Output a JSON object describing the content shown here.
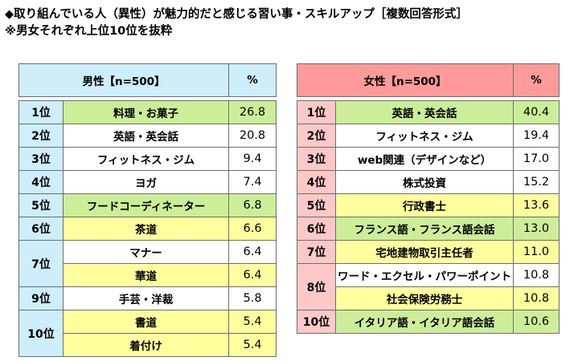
{
  "heading": {
    "line1": "◆取り組んでいる人（異性）が魅力的だと感じる習い事・スキルアップ［複数回答形式］",
    "line2": "※男女それぞれ上位10位を抜粋"
  },
  "colors": {
    "male_header": "#cdeefa",
    "female_header": "#ff9a9a",
    "rank_cell_male": "#cdeefa",
    "rank_cell_female": "#fcc8c8",
    "green_highlight": "#ccee99",
    "yellow_highlight": "#ffff9e",
    "plain": "#ffffff",
    "border": "#6e6e6e"
  },
  "chart_data": [
    {
      "type": "table",
      "header": {
        "label": "男性【n=500】",
        "unit": "%"
      },
      "groups": [
        {
          "rank": "1位",
          "items": [
            {
              "name": "料理・お菓子",
              "value": "26.8",
              "highlight": "green"
            }
          ]
        },
        {
          "rank": "2位",
          "items": [
            {
              "name": "英語・英会話",
              "value": "20.8",
              "highlight": "none"
            }
          ]
        },
        {
          "rank": "3位",
          "items": [
            {
              "name": "フィットネス・ジム",
              "value": "9.4",
              "highlight": "none"
            }
          ]
        },
        {
          "rank": "4位",
          "items": [
            {
              "name": "ヨガ",
              "value": "7.4",
              "highlight": "none"
            }
          ]
        },
        {
          "rank": "5位",
          "items": [
            {
              "name": "フードコーディネーター",
              "value": "6.8",
              "highlight": "green"
            }
          ]
        },
        {
          "rank": "6位",
          "items": [
            {
              "name": "茶道",
              "value": "6.6",
              "highlight": "yellow"
            }
          ]
        },
        {
          "rank": "7位",
          "items": [
            {
              "name": "マナー",
              "value": "6.4",
              "highlight": "none"
            },
            {
              "name": "華道",
              "value": "6.4",
              "highlight": "yellow"
            }
          ]
        },
        {
          "rank": "9位",
          "items": [
            {
              "name": "手芸・洋裁",
              "value": "5.8",
              "highlight": "none"
            }
          ]
        },
        {
          "rank": "10位",
          "items": [
            {
              "name": "書道",
              "value": "5.4",
              "highlight": "yellow"
            },
            {
              "name": "着付け",
              "value": "5.4",
              "highlight": "yellow"
            }
          ]
        }
      ]
    },
    {
      "type": "table",
      "header": {
        "label": "女性【n=500】",
        "unit": "%"
      },
      "groups": [
        {
          "rank": "1位",
          "items": [
            {
              "name": "英語・英会話",
              "value": "40.4",
              "highlight": "green"
            }
          ]
        },
        {
          "rank": "2位",
          "items": [
            {
              "name": "フィットネス・ジム",
              "value": "19.4",
              "highlight": "none"
            }
          ]
        },
        {
          "rank": "3位",
          "items": [
            {
              "name": "web関連（デザインなど）",
              "value": "17.0",
              "highlight": "none"
            }
          ]
        },
        {
          "rank": "4位",
          "items": [
            {
              "name": "株式投資",
              "value": "15.2",
              "highlight": "none"
            }
          ]
        },
        {
          "rank": "5位",
          "items": [
            {
              "name": "行政書士",
              "value": "13.6",
              "highlight": "yellow"
            }
          ]
        },
        {
          "rank": "6位",
          "items": [
            {
              "name": "フランス語・フランス語会話",
              "value": "13.0",
              "highlight": "green"
            }
          ]
        },
        {
          "rank": "7位",
          "items": [
            {
              "name": "宅地建物取引主任者",
              "value": "11.0",
              "highlight": "yellow"
            }
          ]
        },
        {
          "rank": "8位",
          "items": [
            {
              "name": "ワード・エクセル・パワーポイント",
              "value": "10.8",
              "highlight": "none"
            },
            {
              "name": "社会保険労務士",
              "value": "10.8",
              "highlight": "yellow"
            }
          ]
        },
        {
          "rank": "10位",
          "items": [
            {
              "name": "イタリア語・イタリア語会話",
              "value": "10.6",
              "highlight": "green"
            }
          ]
        }
      ]
    }
  ]
}
